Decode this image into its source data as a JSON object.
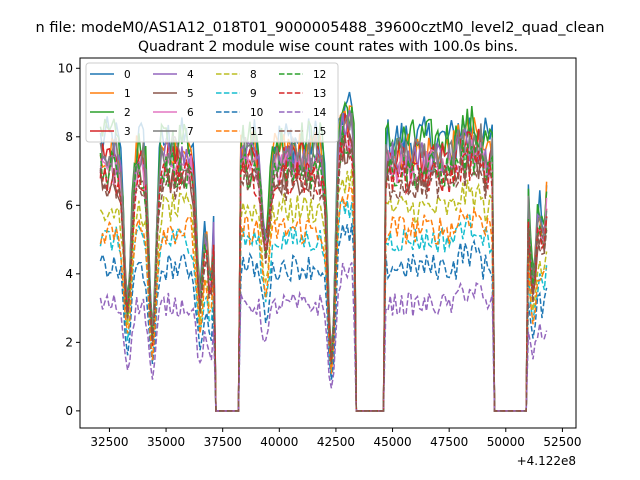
{
  "suptitle": "n file: modeM0/AS1A12_018T01_9000005488_39600cztM0_level2_quad_clean",
  "chart_data": {
    "type": "line",
    "title": "Quadrant 2 module wise count rates with 100.0s bins.",
    "xlabel": "",
    "ylabel": "",
    "offset_label": "+4.122e8",
    "xlim": [
      31200,
      53100
    ],
    "ylim": [
      -0.5,
      10.3
    ],
    "xticks": [
      32500,
      35000,
      37500,
      40000,
      42500,
      45000,
      47500,
      50000,
      52500
    ],
    "xtick_labels": [
      "32500",
      "35000",
      "37500",
      "40000",
      "42500",
      "45000",
      "47500",
      "50000",
      "52500"
    ],
    "yticks": [
      0,
      2,
      4,
      6,
      8,
      10
    ],
    "ytick_labels": [
      "0",
      "2",
      "4",
      "6",
      "8",
      "10"
    ],
    "legend": {
      "placement": "top-left",
      "ncol": 4
    },
    "gaps": [
      [
        37150,
        38250
      ],
      [
        43350,
        44650
      ],
      [
        49500,
        50950
      ]
    ],
    "x_range": [
      32100,
      51800
    ],
    "series": [
      {
        "name": "0",
        "color": "#1f77b4",
        "dash": "solid",
        "level": 7.9,
        "amp": 0.7
      },
      {
        "name": "1",
        "color": "#ff7f0e",
        "dash": "solid",
        "level": 7.6,
        "amp": 0.6
      },
      {
        "name": "2",
        "color": "#2ca02c",
        "dash": "solid",
        "level": 7.9,
        "amp": 0.65
      },
      {
        "name": "3",
        "color": "#d62728",
        "dash": "solid",
        "level": 7.3,
        "amp": 0.55
      },
      {
        "name": "4",
        "color": "#9467bd",
        "dash": "solid",
        "level": 7.4,
        "amp": 0.55
      },
      {
        "name": "5",
        "color": "#8c564b",
        "dash": "solid",
        "level": 6.8,
        "amp": 0.5
      },
      {
        "name": "6",
        "color": "#e377c2",
        "dash": "solid",
        "level": 7.1,
        "amp": 0.55
      },
      {
        "name": "7",
        "color": "#7f7f7f",
        "dash": "solid",
        "level": 7.5,
        "amp": 0.55
      },
      {
        "name": "8",
        "color": "#bcbd22",
        "dash": "dashed",
        "level": 5.9,
        "amp": 0.45
      },
      {
        "name": "9",
        "color": "#17becf",
        "dash": "dashed",
        "level": 5.0,
        "amp": 0.4
      },
      {
        "name": "10",
        "color": "#1f77b4",
        "dash": "dashed",
        "level": 4.2,
        "amp": 0.4
      },
      {
        "name": "11",
        "color": "#ff7f0e",
        "dash": "dashed",
        "level": 5.3,
        "amp": 0.45
      },
      {
        "name": "12",
        "color": "#2ca02c",
        "dash": "dashed",
        "level": 7.0,
        "amp": 0.55
      },
      {
        "name": "13",
        "color": "#d62728",
        "dash": "dashed",
        "level": 6.8,
        "amp": 0.5
      },
      {
        "name": "14",
        "color": "#9467bd",
        "dash": "dashed",
        "level": 3.1,
        "amp": 0.35
      },
      {
        "name": "15",
        "color": "#8c564b",
        "dash": "dashed",
        "level": 6.6,
        "amp": 0.5
      }
    ]
  }
}
